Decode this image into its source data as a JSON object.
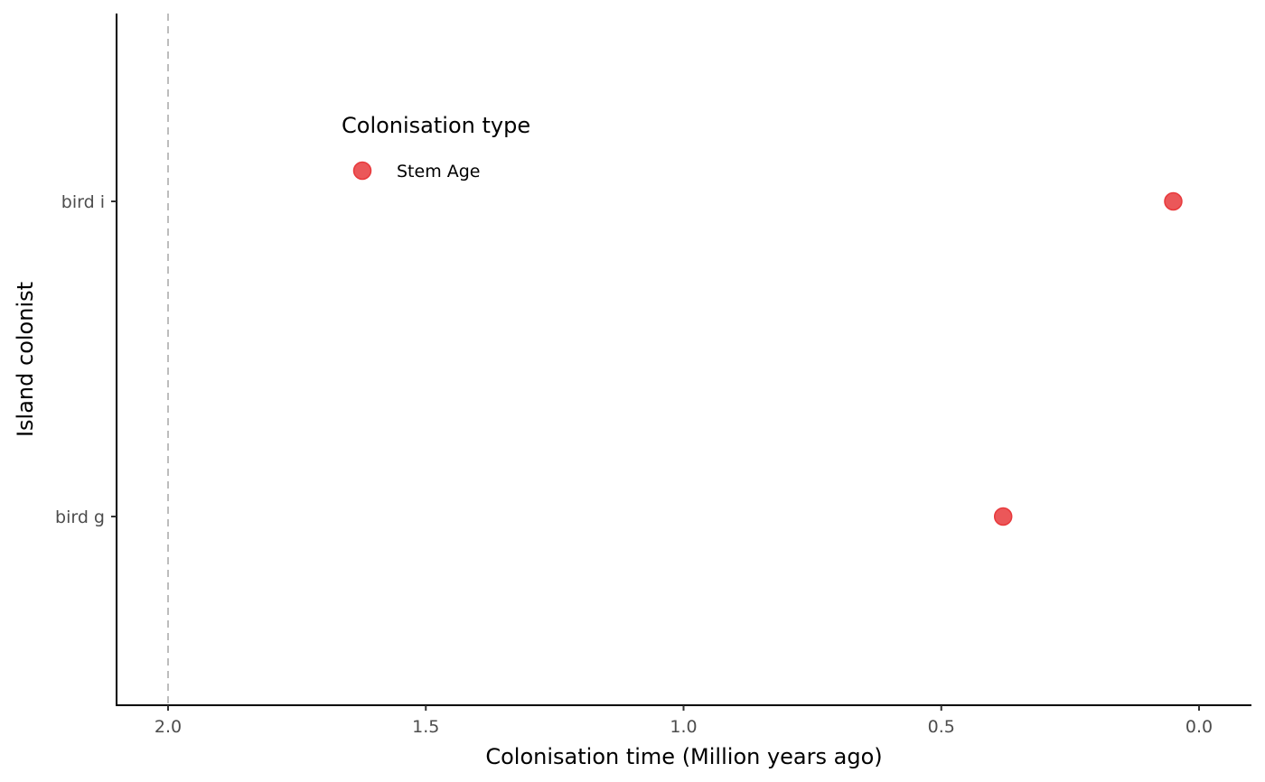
{
  "chart_data": {
    "type": "scatter",
    "title": "",
    "xlabel": "Colonisation time (Million years ago)",
    "ylabel": "Island colonist",
    "x_reversed": true,
    "xlim": [
      2.1,
      -0.1
    ],
    "x_ticks": [
      2.0,
      1.5,
      1.0,
      0.5,
      0.0
    ],
    "x_tick_labels": [
      "2.0",
      "1.5",
      "1.0",
      "0.5",
      "0.0"
    ],
    "categories": [
      "bird g",
      "bird i"
    ],
    "reference_line": {
      "x": 2.0,
      "style": "dashed",
      "color": "#bdbdbd"
    },
    "legend": {
      "title": "Colonisation type",
      "placement": "top-left inside plot",
      "entries": [
        {
          "label": "Stem Age",
          "color": "#e8393c"
        }
      ]
    },
    "series": [
      {
        "name": "Stem Age",
        "color": "#e8393c",
        "points": [
          {
            "category": "bird i",
            "x": 0.05
          },
          {
            "category": "bird g",
            "x": 0.38
          }
        ]
      }
    ],
    "grid": false
  }
}
